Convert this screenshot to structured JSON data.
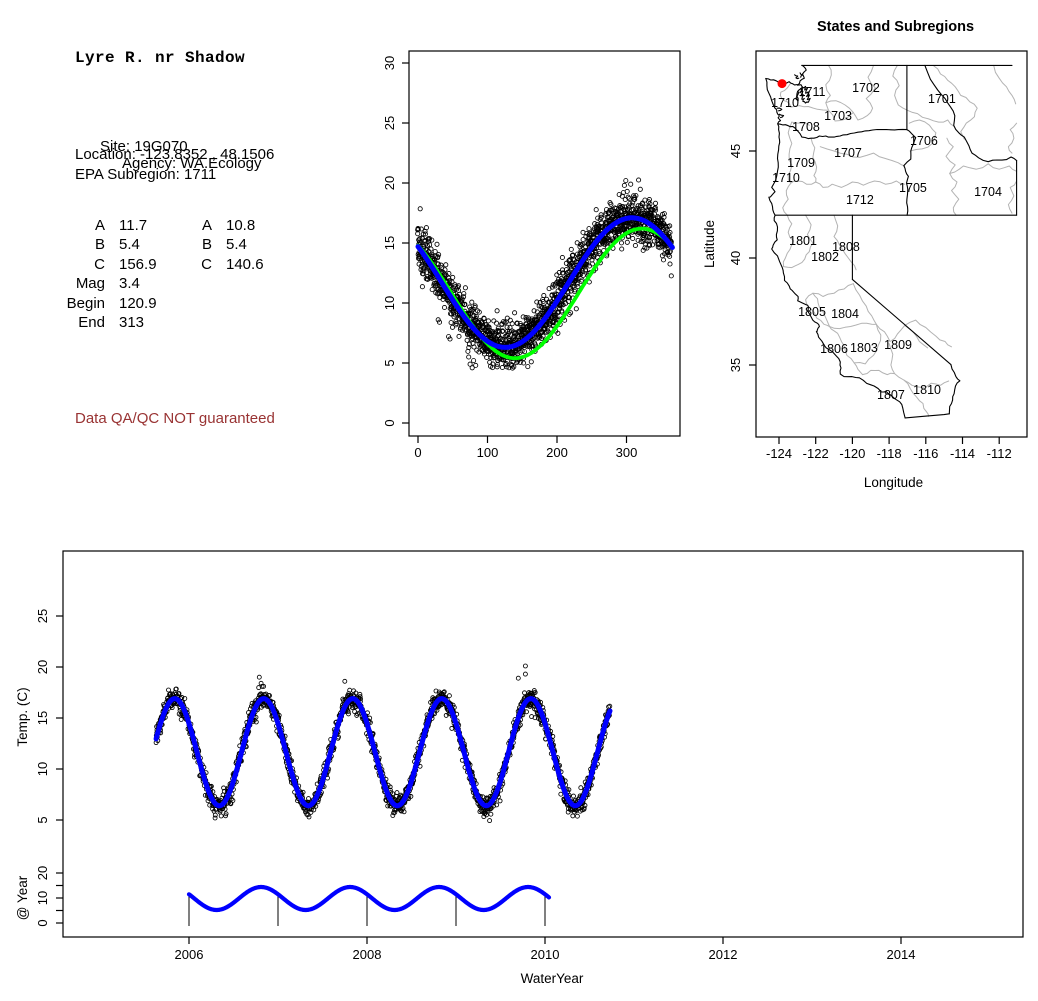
{
  "info_panel": {
    "title": "Lyre R. nr Shadow",
    "site": "Site: 19G070",
    "agency": "Agency: WA.Ecology",
    "location_line": "Location: -123.8352 , 48.1506",
    "subregion_line": "EPA Subregion: 1711",
    "param_rows": [
      {
        "l1": "A",
        "v1": "11.7",
        "l2": "A",
        "v2": "10.8"
      },
      {
        "l1": "B",
        "v1": "5.4",
        "l2": "B",
        "v2": "5.4"
      },
      {
        "l1": "C",
        "v1": "156.9",
        "l2": "C",
        "v2": "140.6"
      },
      {
        "l1": "Mag",
        "v1": "3.4",
        "l2": "",
        "v2": ""
      },
      {
        "l1": "Begin",
        "v1": "120.9",
        "l2": "",
        "v2": ""
      },
      {
        "l1": "End",
        "v1": "313",
        "l2": "",
        "v2": ""
      }
    ],
    "warning": "Data QA/QC NOT guaranteed",
    "warning_color": "#993333"
  },
  "chart_data": [
    {
      "id": "seasonal-fit",
      "type": "scatter",
      "title": "",
      "xlabel": "",
      "ylabel": "",
      "x_ticks": [
        0,
        100,
        200,
        300
      ],
      "y_ticks": [
        0,
        5,
        10,
        15,
        20,
        25,
        30
      ],
      "xlim": [
        -13,
        377
      ],
      "ylim": [
        -1,
        31
      ],
      "point_color": "#000000",
      "scatter_model": {
        "n_years": 5,
        "day_min": 0,
        "day_max": 365,
        "mean": 11.7,
        "amplitude": 5.4,
        "peak_day": 308,
        "noise_sd": 0.95,
        "year_offsets": [
          0.25,
          -0.2,
          0.1,
          -0.3,
          0.15
        ]
      },
      "outliers": [
        [
          29,
          8.6
        ],
        [
          31,
          8.4
        ],
        [
          44,
          7.2
        ],
        [
          46,
          7.0
        ],
        [
          73,
          5.5
        ],
        [
          75,
          4.9
        ],
        [
          78,
          4.6
        ],
        [
          80,
          5.2
        ],
        [
          83,
          4.8
        ],
        [
          152,
          5.0
        ],
        [
          158,
          4.7
        ],
        [
          163,
          5.1
        ],
        [
          243,
          15.8
        ],
        [
          246,
          16.2
        ],
        [
          294,
          18.9
        ],
        [
          297,
          19.8
        ],
        [
          299,
          20.2
        ],
        [
          301,
          19.3
        ],
        [
          304,
          18.7
        ],
        [
          306,
          19.9
        ]
      ],
      "curves": [
        {
          "name": "seasonal-fit-green",
          "color": "#00FF00",
          "width": 3.8,
          "mean": 10.8,
          "amplitude": 5.4,
          "peak_day": 322,
          "sample_days": [
            0,
            30,
            60,
            90,
            120,
            150,
            180,
            210,
            240,
            270,
            300,
            330,
            360
          ],
          "sample_values": [
            14.8,
            12.5,
            9.7,
            7.2,
            5.7,
            5.5,
            6.7,
            8.9,
            11.7,
            14.2,
            15.8,
            16.1,
            15.1
          ]
        },
        {
          "name": "seasonal-fit-blue",
          "color": "#0000FF",
          "width": 5,
          "mean": 11.7,
          "amplitude": 5.4,
          "peak_day": 308,
          "sample_days": [
            0,
            30,
            60,
            90,
            120,
            150,
            180,
            210,
            240,
            270,
            300,
            330,
            360
          ],
          "sample_values": [
            14.8,
            12.3,
            9.5,
            7.4,
            6.3,
            6.7,
            8.4,
            10.9,
            13.6,
            15.9,
            17.0,
            16.8,
            15.2
          ]
        }
      ]
    },
    {
      "id": "temp-timeseries",
      "type": "scatter+line",
      "xlabel": "WaterYear",
      "ylabel": "Temp. (C)",
      "x_ticks": [
        2006,
        2008,
        2010,
        2012,
        2014
      ],
      "y_ticks": [
        5,
        10,
        15,
        20,
        25
      ],
      "xlim": [
        2004.58,
        2015.37
      ],
      "point_color": "#000000",
      "fit_color": "#0000FF",
      "series_model": {
        "start": 2005.63,
        "end": 2010.73,
        "mean": 11.65,
        "amplitude": 5.25,
        "peak_fraction": 0.84,
        "noise_sd": 0.55
      },
      "outliers": [
        [
          2006.79,
          19.0
        ],
        [
          2006.81,
          18.4
        ],
        [
          2007.75,
          18.6
        ],
        [
          2009.78,
          20.1
        ],
        [
          2009.78,
          19.3
        ],
        [
          2009.7,
          18.9
        ]
      ]
    },
    {
      "id": "seasonal-component",
      "type": "line",
      "ylabel": "@ Year",
      "y_ticks_all": [
        0,
        5,
        10,
        15,
        20
      ],
      "y_ticks_labeled": [
        0,
        10,
        20
      ],
      "x_range": [
        2006.0,
        2010.05
      ],
      "model": {
        "mean": 9.8,
        "amplitude": 4.6,
        "peak_fraction": 0.81
      },
      "year_marks": [
        2006,
        2007,
        2008,
        2009,
        2010
      ],
      "color": "#0000FF"
    }
  ],
  "map": {
    "title": "States and Subregions",
    "xlabel": "Longitude",
    "ylabel": "Latitude",
    "x_ticks": [
      -124,
      -122,
      -120,
      -118,
      -116,
      -114,
      -112
    ],
    "y_ticks": [
      35,
      40,
      45
    ],
    "state_border_color": "#000000",
    "subregion_border_color": "#B3B3B3",
    "marker": {
      "lon": -123.8352,
      "lat": 48.1506,
      "color": "#FF0000",
      "radius": 4.5
    },
    "region_labels": [
      {
        "code": "1711",
        "lon": -122.2,
        "lat": 47.76
      },
      {
        "code": "1710",
        "lon": -123.67,
        "lat": 47.24
      },
      {
        "code": "1702",
        "lon": -119.26,
        "lat": 47.94
      },
      {
        "code": "1701",
        "lon": -115.12,
        "lat": 47.43
      },
      {
        "code": "1703",
        "lon": -120.78,
        "lat": 46.64
      },
      {
        "code": "1708",
        "lon": -122.53,
        "lat": 46.12
      },
      {
        "code": "1706",
        "lon": -116.1,
        "lat": 45.47
      },
      {
        "code": "1707",
        "lon": -120.24,
        "lat": 44.91
      },
      {
        "code": "1709",
        "lon": -122.8,
        "lat": 44.44
      },
      {
        "code": "1710",
        "lon": -123.62,
        "lat": 43.74
      },
      {
        "code": "1705",
        "lon": -116.7,
        "lat": 43.27
      },
      {
        "code": "1704",
        "lon": -112.61,
        "lat": 43.08
      },
      {
        "code": "1712",
        "lon": -119.59,
        "lat": 42.71
      },
      {
        "code": "1801",
        "lon": -122.69,
        "lat": 40.79
      },
      {
        "code": "1808",
        "lon": -120.35,
        "lat": 40.51
      },
      {
        "code": "1802",
        "lon": -121.49,
        "lat": 40.04
      },
      {
        "code": "1805",
        "lon": -122.2,
        "lat": 37.48
      },
      {
        "code": "1804",
        "lon": -120.4,
        "lat": 37.38
      },
      {
        "code": "1806",
        "lon": -121.0,
        "lat": 35.75
      },
      {
        "code": "1803",
        "lon": -119.37,
        "lat": 35.79
      },
      {
        "code": "1809",
        "lon": -117.51,
        "lat": 35.93
      },
      {
        "code": "1807",
        "lon": -117.9,
        "lat": 33.6
      },
      {
        "code": "1810",
        "lon": -115.93,
        "lat": 33.83
      }
    ]
  }
}
